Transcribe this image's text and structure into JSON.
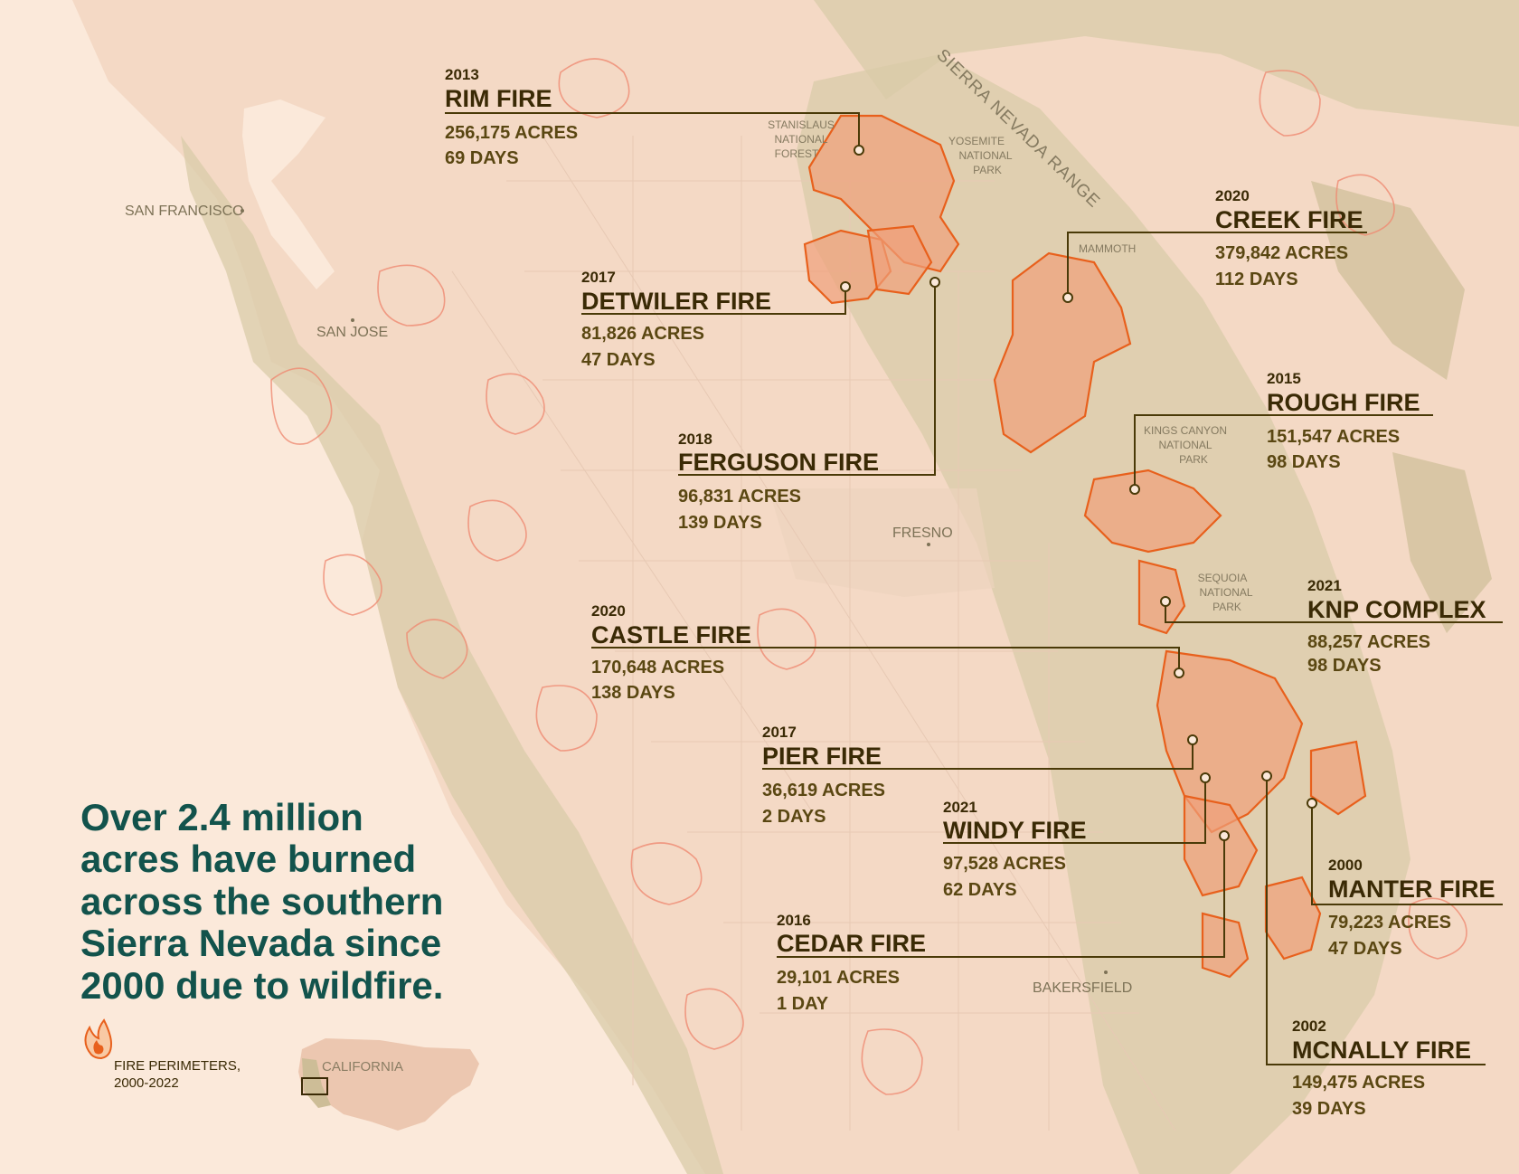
{
  "headline": {
    "lines": [
      "Over 2.4 million",
      "acres have burned",
      "across the southern",
      "Sierra Nevada since",
      "2000 due to wildfire."
    ]
  },
  "places": {
    "san_francisco": "SAN FRANCISCO",
    "san_jose": "SAN JOSE",
    "fresno": "FRESNO",
    "bakersfield": "BAKERSFIELD",
    "mammoth": "MAMMOTH",
    "range": "SIERRA NEVADA RANGE",
    "stanislaus": [
      "STANISLAUS",
      "NATIONAL",
      "FOREST"
    ],
    "yosemite": [
      "YOSEMITE",
      "NATIONAL",
      "PARK"
    ],
    "kings_canyon": [
      "KINGS CANYON",
      "NATIONAL",
      "PARK"
    ],
    "sequoia": [
      "SEQUOIA",
      "NATIONAL",
      "PARK"
    ]
  },
  "fires": [
    {
      "year": "2013",
      "name": "RIM FIRE",
      "acres": "256,175 ACRES",
      "days": "69 DAYS"
    },
    {
      "year": "2017",
      "name": "DETWILER FIRE",
      "acres": "81,826 ACRES",
      "days": "47 DAYS"
    },
    {
      "year": "2018",
      "name": "FERGUSON FIRE",
      "acres": "96,831 ACRES",
      "days": "139 DAYS"
    },
    {
      "year": "2020",
      "name": "CREEK FIRE",
      "acres": "379,842 ACRES",
      "days": "112 DAYS"
    },
    {
      "year": "2015",
      "name": "ROUGH FIRE",
      "acres": "151,547 ACRES",
      "days": "98 DAYS"
    },
    {
      "year": "2021",
      "name": "KNP COMPLEX",
      "acres": "88,257 ACRES",
      "days": "98 DAYS"
    },
    {
      "year": "2020",
      "name": "CASTLE FIRE",
      "acres": "170,648 ACRES",
      "days": "138 DAYS"
    },
    {
      "year": "2017",
      "name": "PIER FIRE",
      "acres": "36,619 ACRES",
      "days": "2 DAYS"
    },
    {
      "year": "2021",
      "name": "WINDY FIRE",
      "acres": "97,528 ACRES",
      "days": "62 DAYS"
    },
    {
      "year": "2016",
      "name": "CEDAR FIRE",
      "acres": "29,101 ACRES",
      "days": "1 DAY"
    },
    {
      "year": "2000",
      "name": "MANTER FIRE",
      "acres": "79,223 ACRES",
      "days": "47 DAYS"
    },
    {
      "year": "2002",
      "name": "MCNALLY FIRE",
      "acres": "149,475 ACRES",
      "days": "39 DAYS"
    }
  ],
  "legend": {
    "fire_icon": "flame-icon",
    "line1": "FIRE PERIMETERS,",
    "line2": "2000-2022",
    "inset_label": "CALIFORNIA"
  },
  "colors": {
    "background": "#fbe9da",
    "fire_fill": "#f0a07a",
    "fire_stroke": "#e8601c",
    "headline": "#12534c",
    "label": "#3a2a05"
  }
}
